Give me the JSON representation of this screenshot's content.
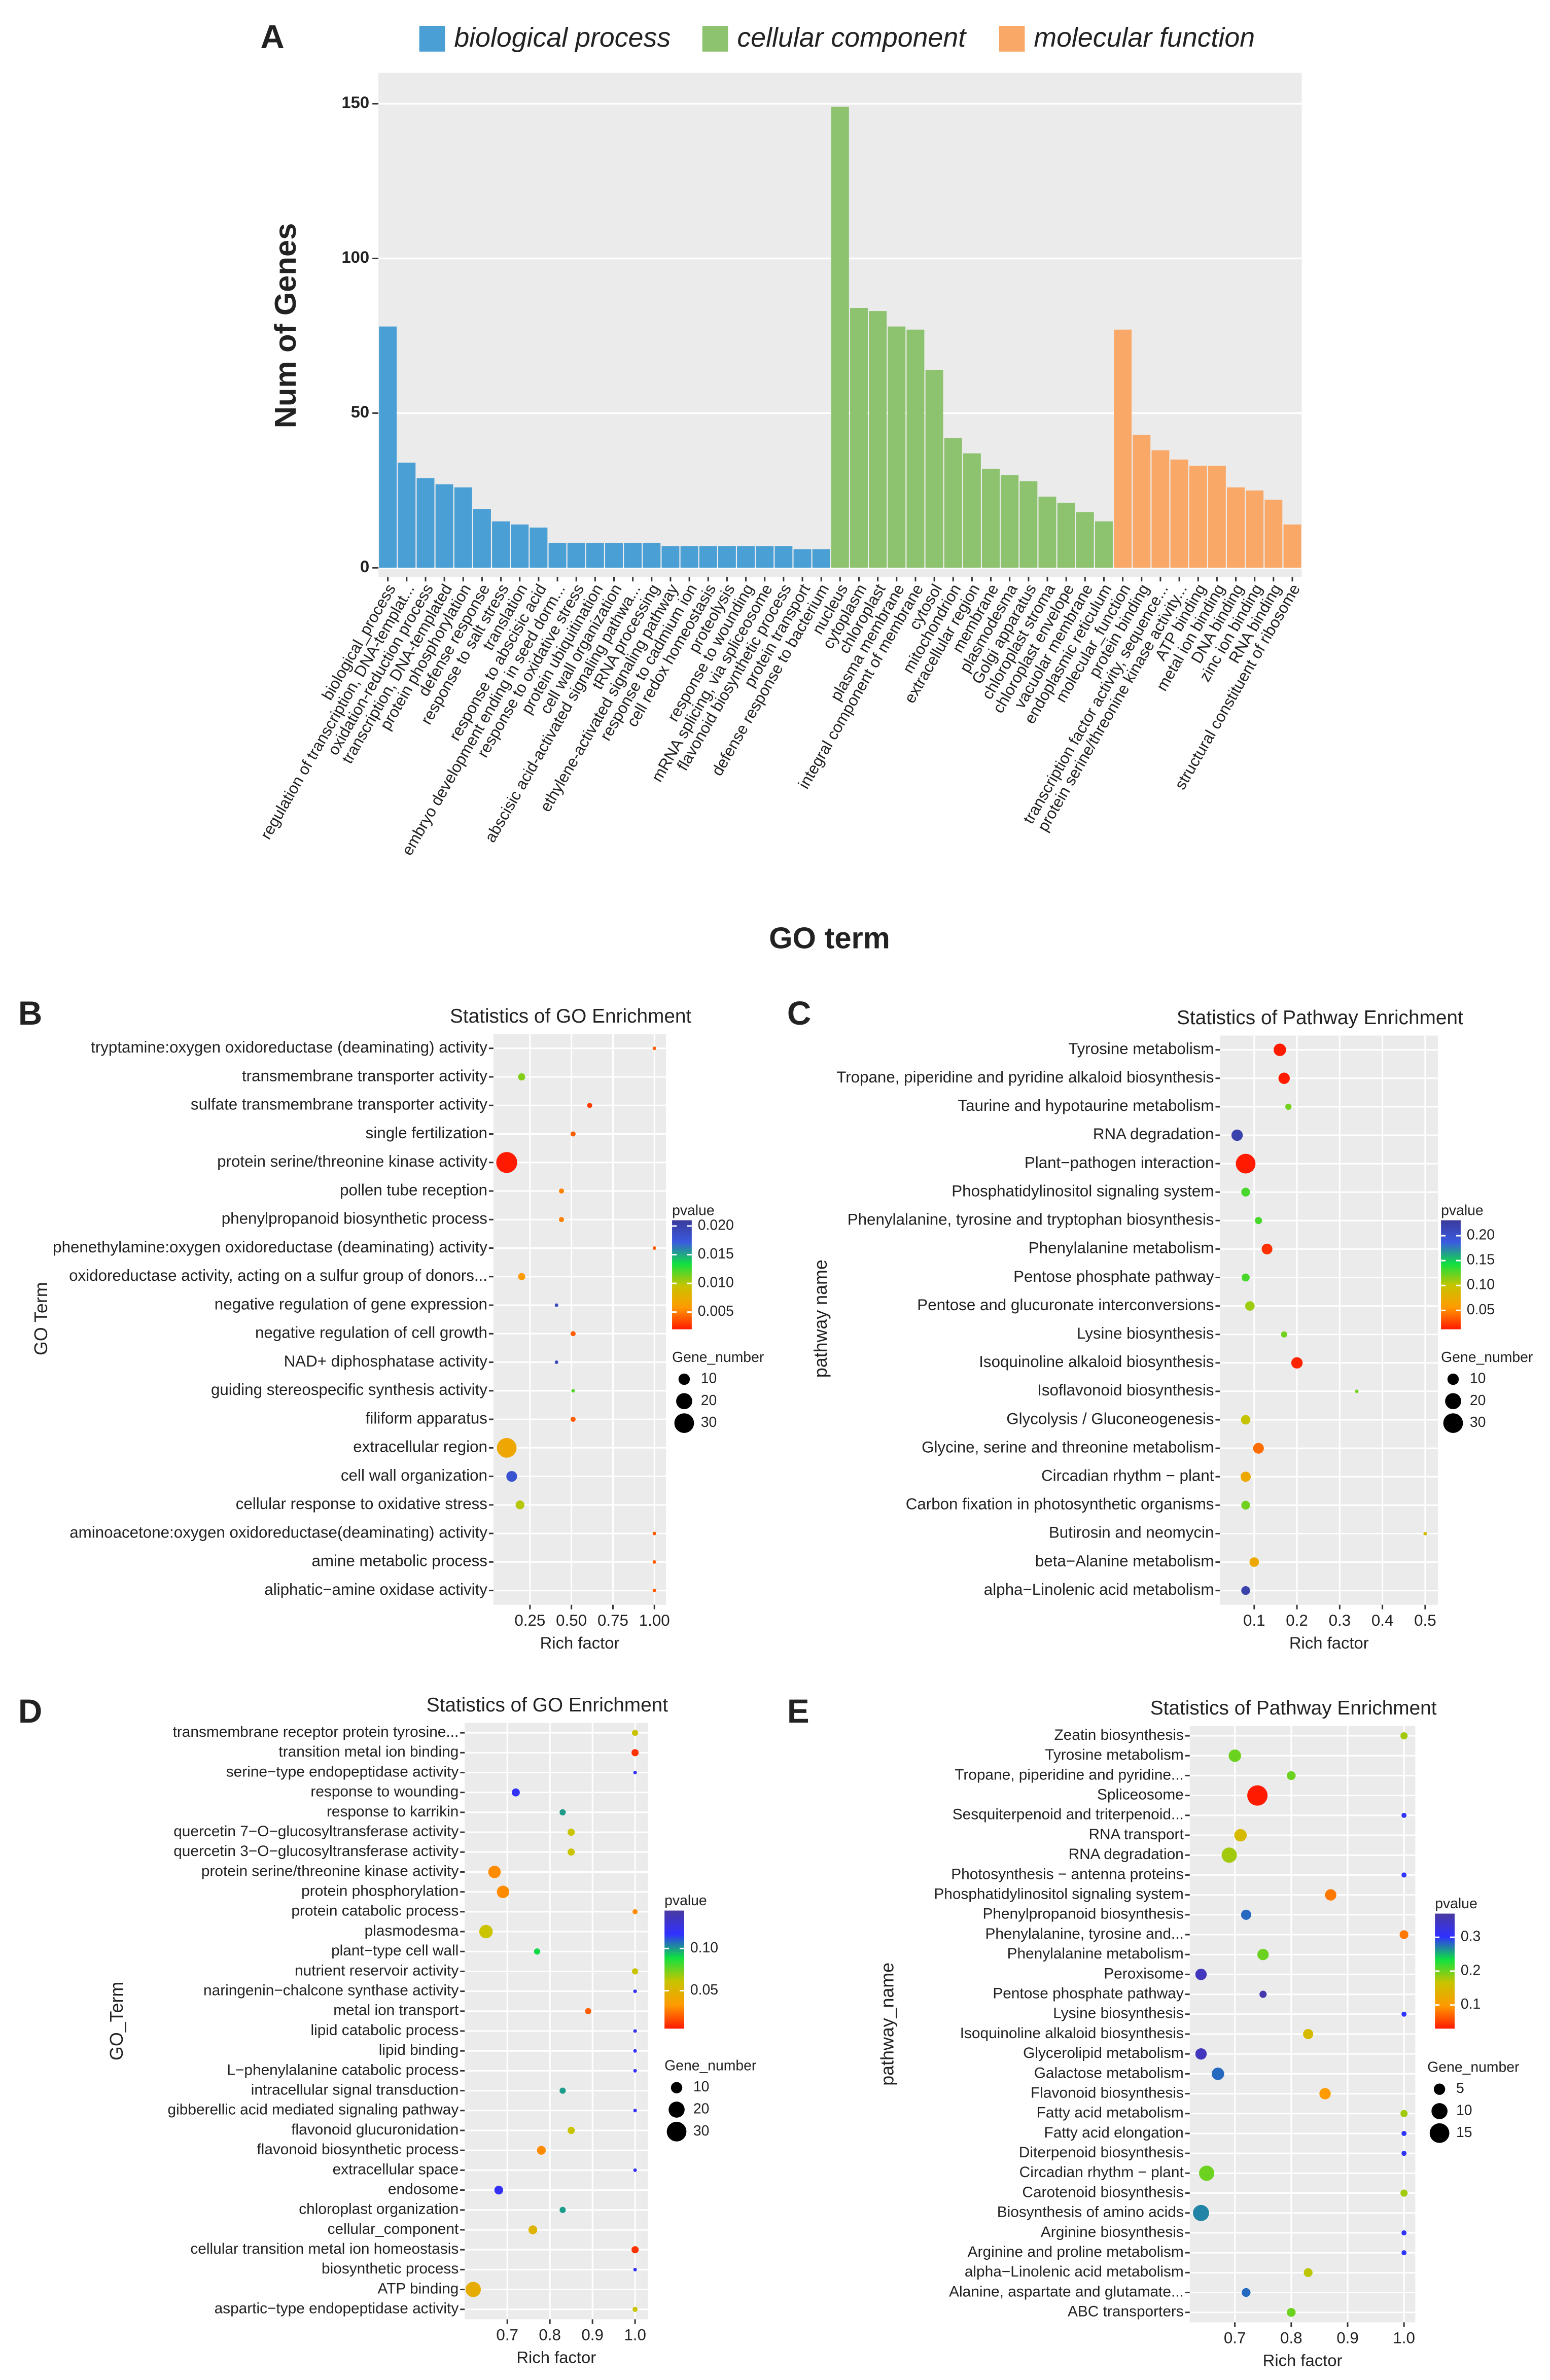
{
  "chart_data": [
    {
      "type": "bar",
      "panel_label": "A",
      "y_label": "Num of Genes",
      "x_label": "GO term",
      "categories": [
        "biological_process",
        "regulation of transcription, DNA-templat...",
        "oxidation-reduction process",
        "transcription, DNA-templated",
        "protein phosphorylation",
        "defense response",
        "response to salt stress",
        "translation",
        "response to abscisic acid",
        "embryo development ending in seed dorm...",
        "response to oxidative stress",
        "protein ubiquitination",
        "cell wall organization",
        "abscisic acid-activated signaling pathwa...",
        "tRNA processing",
        "ethylene-activated signaling pathway",
        "response to cadmium ion",
        "cell redox homeostasis",
        "proteolysis",
        "response to wounding",
        "mRNA splicing, via spliceosome",
        "flavonoid biosynthetic process",
        "protein transport",
        "defense response to bacterium",
        "nucleus",
        "cytoplasm",
        "chloroplast",
        "plasma membrane",
        "integral component of membrane",
        "cytosol",
        "mitochondrion",
        "extracellular region",
        "membrane",
        "plasmodesma",
        "Golgi apparatus",
        "chloroplast stroma",
        "chloroplast envelope",
        "vacuolar membrane",
        "endoplasmic reticulum",
        "molecular_function",
        "protein binding",
        "transcription factor activity, sequence...",
        "protein serine/threonine kinase activity...",
        "ATP binding",
        "metal ion binding",
        "DNA binding",
        "zinc ion binding",
        "RNA binding",
        "structural constituent of ribosome"
      ],
      "series": [
        {
          "name": "biological process",
          "color": "#4a9fd5",
          "values": [
            78,
            34,
            29,
            27,
            26,
            19,
            15,
            14,
            13,
            8,
            8,
            8,
            8,
            8,
            8,
            7,
            7,
            7,
            7,
            7,
            7,
            7,
            6,
            6,
            null,
            null,
            null,
            null,
            null,
            null,
            null,
            null,
            null,
            null,
            null,
            null,
            null,
            null,
            null,
            null,
            null,
            null,
            null,
            null,
            null,
            null,
            null,
            null,
            null
          ]
        },
        {
          "name": "cellular component",
          "color": "#8dc26f",
          "values": [
            null,
            null,
            null,
            null,
            null,
            null,
            null,
            null,
            null,
            null,
            null,
            null,
            null,
            null,
            null,
            null,
            null,
            null,
            null,
            null,
            null,
            null,
            null,
            null,
            149,
            84,
            83,
            78,
            77,
            64,
            42,
            37,
            32,
            30,
            28,
            23,
            21,
            18,
            15,
            null,
            null,
            null,
            null,
            null,
            null,
            null,
            null,
            null,
            null
          ]
        },
        {
          "name": "molecular function",
          "color": "#f9a867",
          "values": [
            null,
            null,
            null,
            null,
            null,
            null,
            null,
            null,
            null,
            null,
            null,
            null,
            null,
            null,
            null,
            null,
            null,
            null,
            null,
            null,
            null,
            null,
            null,
            null,
            null,
            null,
            null,
            null,
            null,
            null,
            null,
            null,
            null,
            null,
            null,
            null,
            null,
            null,
            null,
            77,
            43,
            38,
            35,
            33,
            33,
            26,
            25,
            22,
            14
          ]
        }
      ],
      "ylim": [
        0,
        160
      ],
      "yticks": [
        0,
        50,
        100,
        150
      ],
      "grid": true
    },
    {
      "type": "scatter",
      "panel_label": "B",
      "title": "Statistics of GO Enrichment",
      "y_label": "GO Term",
      "x_label": "Rich factor",
      "categories": [
        "tryptamine:oxygen oxidoreductase (deaminating) activity",
        "transmembrane transporter activity",
        "sulfate transmembrane transporter activity",
        "single fertilization",
        "protein serine/threonine kinase activity",
        "pollen tube reception",
        "phenylpropanoid biosynthetic process",
        "phenethylamine:oxygen oxidoreductase (deaminating) activity",
        "oxidoreductase activity, acting on a sulfur group of donors...",
        "negative regulation of gene expression",
        "negative regulation of cell growth",
        "NAD+ diphosphatase activity",
        "guiding stereospecific synthesis activity",
        "filiform apparatus",
        "extracellular region",
        "cell wall organization",
        "cellular response to oxidative stress",
        "aminoacetone:oxygen oxidoreductase(deaminating) activity",
        "amine metabolic process",
        "aliphatic−amine oxidase activity"
      ],
      "x": [
        1.0,
        0.2,
        0.61,
        0.51,
        0.11,
        0.44,
        0.44,
        1.0,
        0.2,
        0.41,
        0.51,
        0.41,
        0.51,
        0.51,
        0.11,
        0.14,
        0.19,
        1.0,
        1.0,
        1.0
      ],
      "gene_number": [
        1,
        4,
        2,
        2,
        34,
        2,
        2,
        1,
        4,
        1,
        2,
        1,
        1,
        2,
        30,
        9,
        6,
        1,
        1,
        1
      ],
      "pvalue": [
        0.004,
        0.011,
        0.003,
        0.004,
        0.002,
        0.005,
        0.005,
        0.004,
        0.006,
        0.019,
        0.004,
        0.019,
        0.012,
        0.004,
        0.007,
        0.018,
        0.01,
        0.004,
        0.004,
        0.004
      ],
      "xlim": [
        0.03,
        1.07
      ],
      "xticks": [
        0.25,
        {
          "value": 0.5,
          "label": "0.50"
        },
        0.75,
        {
          "value": 1,
          "label": "1.00"
        }
      ],
      "colorscale": [
        "#ff1a00",
        "#ff9a00",
        "#c8c400",
        "#10e040",
        "#3a5ae0",
        "#3a3a9a"
      ],
      "colorbar": {
        "title": "pvalue",
        "lim": [
          0.002,
          0.021
        ],
        "ticks": [
          {
            "value": 0.02,
            "label": "0.020"
          },
          0.015,
          {
            "value": 0.01,
            "label": "0.010"
          },
          0.005
        ]
      },
      "size_legend": {
        "title": "Gene_number",
        "values": [
          10,
          20,
          30
        ]
      }
    },
    {
      "type": "scatter",
      "panel_label": "C",
      "title": "Statistics of Pathway Enrichment",
      "y_label": "pathway name",
      "x_label": "Rich factor",
      "categories": [
        "Tyrosine metabolism",
        "Tropane, piperidine and pyridine alkaloid biosynthesis",
        "Taurine and hypotaurine metabolism",
        "RNA degradation",
        "Plant−pathogen interaction",
        "Phosphatidylinositol signaling system",
        "Phenylalanine, tyrosine and tryptophan biosynthesis",
        "Phenylalanine metabolism",
        "Pentose phosphate pathway",
        "Pentose and glucuronate interconversions",
        "Lysine biosynthesis",
        "Isoquinoline alkaloid biosynthesis",
        "Isoflavonoid biosynthesis",
        "Glycolysis / Gluconeogenesis",
        "Glycine, serine and threonine metabolism",
        "Circadian rhythm − plant",
        "Carbon fixation in photosynthetic organisms",
        "Butirosin and neomycin",
        "beta−Alanine metabolism",
        "alpha−Linolenic acid metabolism"
      ],
      "x": [
        0.16,
        0.17,
        0.18,
        0.06,
        0.08,
        0.08,
        0.11,
        0.13,
        0.08,
        0.09,
        0.17,
        0.2,
        0.34,
        0.08,
        0.11,
        0.08,
        0.08,
        0.5,
        0.1,
        0.08
      ],
      "gene_number": [
        12,
        10,
        3,
        10,
        30,
        6,
        4,
        9,
        5,
        7,
        3,
        10,
        1,
        7,
        9,
        8,
        6,
        1,
        7,
        6
      ],
      "pvalue": [
        0.01,
        0.012,
        0.12,
        0.22,
        0.005,
        0.13,
        0.13,
        0.02,
        0.13,
        0.11,
        0.12,
        0.015,
        0.12,
        0.1,
        0.04,
        0.07,
        0.12,
        0.09,
        0.07,
        0.22
      ],
      "xlim": [
        0.02,
        0.53
      ],
      "xticks": [
        0.1,
        0.2,
        0.3,
        0.4,
        0.5
      ],
      "colorscale": [
        "#ff1a00",
        "#ff9a00",
        "#c8c400",
        "#10e040",
        "#3a5ae0",
        "#3a3a9a"
      ],
      "colorbar": {
        "title": "pvalue",
        "lim": [
          0.012,
          0.231
        ],
        "ticks": [
          {
            "value": 0.2,
            "label": "0.20"
          },
          0.15,
          {
            "value": 0.1,
            "label": "0.10"
          },
          0.05
        ]
      },
      "size_legend": {
        "title": "Gene_number",
        "values": [
          10,
          20,
          30
        ]
      }
    },
    {
      "type": "scatter",
      "panel_label": "D",
      "title": "Statistics of GO Enrichment",
      "y_label": "GO_Term",
      "x_label": "Rich factor",
      "categories": [
        "transmembrane receptor protein tyrosine...",
        "transition metal ion binding",
        "serine−type endopeptidase activity",
        "response to wounding",
        "response to karrikin",
        "quercetin 7−O−glucosyltransferase activity",
        "quercetin 3−O−glucosyltransferase activity",
        "protein serine/threonine kinase activity",
        "protein phosphorylation",
        "protein catabolic process",
        "plasmodesma",
        "plant−type cell wall",
        "nutrient reservoir activity",
        "naringenin−chalcone synthase activity",
        "metal ion transport",
        "lipid catabolic process",
        "lipid binding",
        "L−phenylalanine catabolic process",
        "intracellular signal transduction",
        "gibberellic acid mediated signaling pathway",
        "flavonoid glucuronidation",
        "flavonoid biosynthetic process",
        "extracellular space",
        "endosome",
        "chloroplast organization",
        "cellular_component",
        "cellular transition metal ion homeostasis",
        "biosynthetic process",
        "ATP binding",
        "aspartic−type endopeptidase activity"
      ],
      "x": [
        1,
        1,
        1,
        0.72,
        0.83,
        0.85,
        0.85,
        0.67,
        0.69,
        1,
        0.65,
        0.77,
        1,
        1,
        0.89,
        1,
        1,
        1,
        0.83,
        1,
        0.85,
        0.78,
        1,
        0.68,
        0.83,
        0.76,
        1,
        1,
        0.62,
        1
      ],
      "gene_number": [
        3,
        4,
        1,
        5,
        3,
        4,
        4,
        12,
        12,
        2,
        14,
        3,
        3,
        1,
        3,
        1,
        1,
        1,
        3,
        1,
        4,
        6,
        1,
        6,
        3,
        6,
        4,
        1,
        18,
        2
      ],
      "pvalue": [
        0.06,
        0.01,
        0.12,
        0.12,
        0.1,
        0.06,
        0.06,
        0.03,
        0.03,
        0.03,
        0.06,
        0.09,
        0.06,
        0.12,
        0.02,
        0.12,
        0.12,
        0.12,
        0.1,
        0.12,
        0.06,
        0.03,
        0.12,
        0.12,
        0.1,
        0.05,
        0.01,
        0.12,
        0.045,
        0.06
      ],
      "xlim": [
        0.6,
        1.03
      ],
      "xticks": [
        0.7,
        0.8,
        0.9,
        {
          "value": 1,
          "label": "1.0"
        }
      ],
      "colorscale": [
        "#ff1a00",
        "#ff9a00",
        "#c8c400",
        "#10e040",
        "#3030ff",
        "#4a3aa0"
      ],
      "colorbar": {
        "title": "pvalue",
        "lim": [
          0.005,
          0.145
        ],
        "ticks": [
          {
            "value": 0.1,
            "label": "0.10"
          },
          0.05
        ]
      },
      "size_legend": {
        "title": "Gene_number",
        "values": [
          10,
          20,
          30
        ]
      }
    },
    {
      "type": "scatter",
      "panel_label": "E",
      "title": "Statistics of Pathway Enrichment",
      "y_label": "pathway_name",
      "x_label": "Rich factor",
      "categories": [
        "Zeatin biosynthesis",
        "Tyrosine metabolism",
        "Tropane, piperidine and pyridine...",
        "Spliceosome",
        "Sesquiterpenoid and triterpenoid...",
        "RNA transport",
        "RNA degradation",
        "Photosynthesis − antenna proteins",
        "Phosphatidylinositol signaling system",
        "Phenylpropanoid biosynthesis",
        "Phenylalanine, tyrosine and...",
        "Phenylalanine metabolism",
        "Peroxisome",
        "Pentose phosphate pathway",
        "Lysine biosynthesis",
        "Isoquinoline alkaloid biosynthesis",
        "Glycerolipid metabolism",
        "Galactose metabolism",
        "Flavonoid biosynthesis",
        "Fatty acid metabolism",
        "Fatty acid elongation",
        "Diterpenoid biosynthesis",
        "Circadian rhythm − plant",
        "Carotenoid biosynthesis",
        "Biosynthesis of amino acids",
        "Arginine biosynthesis",
        "Arginine and proline metabolism",
        "alpha−Linolenic acid metabolism",
        "Alanine, aspartate and glutamate...",
        "ABC transporters"
      ],
      "x": [
        1,
        0.7,
        0.8,
        0.74,
        1,
        0.71,
        0.69,
        1,
        0.87,
        0.72,
        1,
        0.75,
        0.64,
        0.75,
        1,
        0.83,
        0.64,
        0.67,
        0.86,
        1,
        1,
        1,
        0.65,
        1,
        0.64,
        1,
        1,
        0.83,
        0.72,
        0.8
      ],
      "gene_number": [
        2,
        6,
        3,
        16,
        1,
        6,
        9,
        1,
        5,
        4,
        3,
        5,
        5,
        2,
        1,
        4,
        5,
        6,
        5,
        2,
        1,
        1,
        9,
        2,
        10,
        1,
        1,
        3,
        3,
        3
      ],
      "pvalue": [
        0.18,
        0.2,
        0.2,
        0.02,
        0.3,
        0.15,
        0.18,
        0.3,
        0.08,
        0.28,
        0.08,
        0.2,
        0.35,
        0.36,
        0.3,
        0.15,
        0.35,
        0.28,
        0.1,
        0.18,
        0.3,
        0.3,
        0.2,
        0.18,
        0.27,
        0.3,
        0.3,
        0.17,
        0.28,
        0.2
      ],
      "xlim": [
        0.62,
        1.02
      ],
      "xticks": [
        0.7,
        0.8,
        0.9,
        {
          "value": 1,
          "label": "1.0"
        }
      ],
      "colorscale": [
        "#ff1a00",
        "#ff9a00",
        "#c8c400",
        "#10e040",
        "#3030ff",
        "#4a3aa0"
      ],
      "colorbar": {
        "title": "pvalue",
        "lim": [
          0.03,
          0.37
        ],
        "ticks": [
          0.3,
          0.2,
          0.1
        ]
      },
      "size_legend": {
        "title": "Gene_number",
        "values": [
          5,
          10,
          15
        ]
      }
    }
  ]
}
